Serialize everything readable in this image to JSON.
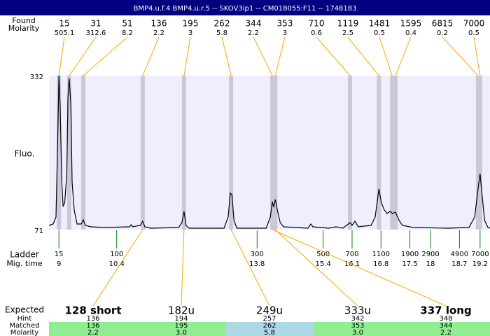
{
  "chart_data": {
    "type": "line",
    "title": "BMP4.u.f.4  BMP4.u.r.5 -- SKOV3ip1 -- CM018055:F11 -- 1748183",
    "header_color": "#000080",
    "peaks": {
      "header": "Found",
      "molarity_header": "Molarity",
      "sizes": [
        15,
        31,
        51,
        136,
        195,
        262,
        344,
        353,
        710,
        1119,
        1481,
        1595,
        6815,
        7000
      ],
      "molarity": [
        505.1,
        312.6,
        8.2,
        2.2,
        3,
        5.8,
        2.2,
        3,
        0.6,
        2.5,
        0.5,
        0.4,
        0.2,
        0.5
      ],
      "times": [
        9.0,
        9.25,
        9.59,
        11.03,
        12.03,
        13.17,
        14.17,
        14.24,
        16.05,
        16.75,
        17.07,
        17.15,
        19.15,
        19.2
      ],
      "band_color": "#c8c8d8",
      "connector_color": "#ffa500"
    },
    "ylabel": "Fluo.",
    "ylim": [
      71,
      332
    ],
    "yticks": [
      71,
      332
    ],
    "xlim": [
      8.76,
      19.44
    ],
    "plot_color": "#eeeeff",
    "trace": {
      "color": "#000000",
      "x": [
        8.76,
        8.86,
        8.93,
        8.97,
        9.0,
        9.03,
        9.07,
        9.1,
        9.14,
        9.19,
        9.22,
        9.25,
        9.29,
        9.32,
        9.37,
        9.44,
        9.54,
        9.59,
        9.64,
        9.78,
        10.12,
        10.71,
        10.75,
        10.78,
        10.97,
        11.03,
        11.08,
        11.22,
        11.9,
        11.98,
        12.03,
        12.08,
        12.15,
        13.0,
        13.1,
        13.15,
        13.19,
        13.24,
        13.31,
        14.02,
        14.12,
        14.17,
        14.2,
        14.24,
        14.29,
        14.36,
        14.44,
        15.03,
        15.1,
        15.15,
        15.54,
        15.71,
        15.88,
        16.05,
        16.1,
        16.17,
        16.25,
        16.39,
        16.56,
        16.66,
        16.75,
        16.81,
        16.88,
        16.95,
        17.02,
        17.08,
        17.15,
        17.24,
        17.32,
        17.58,
        18.42,
        18.93,
        19.07,
        19.15,
        19.2,
        19.25,
        19.31,
        19.39,
        19.44
      ],
      "y": [
        78.1,
        80.5,
        92.4,
        222.9,
        332,
        282.2,
        151.7,
        110.2,
        116.1,
        163.5,
        294.0,
        327.3,
        282.2,
        151.7,
        104.2,
        80.5,
        80.5,
        87.6,
        78.1,
        75.7,
        74.6,
        75.7,
        79.3,
        75.7,
        78.1,
        85.2,
        75.7,
        73.4,
        74.6,
        82.9,
        101.8,
        78.1,
        73.4,
        73.4,
        92.4,
        132.7,
        130.3,
        86.4,
        73.4,
        73.4,
        92.4,
        118.5,
        109.0,
        122.0,
        104.2,
        82.9,
        75.7,
        73.4,
        80.5,
        75.7,
        73.4,
        75.7,
        73.4,
        82.9,
        78.1,
        85.2,
        75.7,
        76.9,
        78.1,
        92.4,
        139.8,
        116.1,
        104.2,
        98.3,
        101.8,
        98.3,
        100.7,
        86.4,
        78.1,
        74.6,
        73.4,
        74.6,
        92.4,
        139.8,
        165.9,
        128.4,
        86.4,
        74.6,
        73.4
      ]
    },
    "ladder": {
      "label": "Ladder",
      "time_label": "Mig. time",
      "color": "#008000",
      "sizes": [
        15,
        100,
        300,
        500,
        700,
        1100,
        1900,
        2900,
        4900,
        7000
      ],
      "xticks": [
        9,
        10.4,
        13.8,
        15.4,
        16.1,
        16.8,
        17.5,
        18,
        18.7,
        19.2
      ]
    },
    "expected": {
      "row_labels": {
        "expected": "Expected",
        "hint": "Hint",
        "matched": "Matched",
        "molarity": "Molarity"
      },
      "columns": [
        {
          "name": "128 short",
          "bold": true,
          "hint": 136,
          "matched": 136,
          "molarity": 2.2,
          "color": "#90ee90"
        },
        {
          "name": "182u",
          "bold": false,
          "hint": 194,
          "matched": 195,
          "molarity": {
            "value": 3.0,
            "label": "3.0"
          },
          "color": "#90ee90"
        },
        {
          "name": "249u",
          "bold": false,
          "hint": 257,
          "matched": 262,
          "molarity": 5.8,
          "color": "#add8e6"
        },
        {
          "name": "333u",
          "bold": false,
          "hint": 342,
          "matched": 353,
          "molarity": {
            "value": 3.0,
            "label": "3.0"
          },
          "color": "#90ee90"
        },
        {
          "name": "337 long",
          "bold": true,
          "hint": 348,
          "matched": 344,
          "molarity": 2.2,
          "color": "#90ee90"
        }
      ]
    }
  }
}
